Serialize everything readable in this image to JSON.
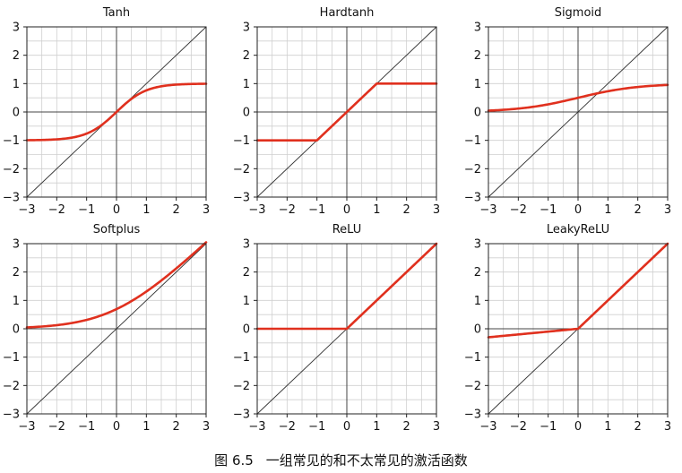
{
  "figure": {
    "caption_number": "图 6.5",
    "caption_text": "一组常见的和不太常见的激活函数"
  },
  "chart_data": [
    {
      "type": "line",
      "title": "Tanh",
      "function": "tanh",
      "xlim": [
        -3,
        3
      ],
      "ylim": [
        -3,
        3
      ],
      "xticks": [
        "−3",
        "−2",
        "−1",
        "0",
        "1",
        "2",
        "3"
      ],
      "yticks": [
        "−3",
        "−2",
        "−1",
        "0",
        "1",
        "2",
        "3"
      ],
      "grid": true,
      "series_color": "#e0301e",
      "reference_color": "#333333"
    },
    {
      "type": "line",
      "title": "Hardtanh",
      "function": "hardtanh",
      "xlim": [
        -3,
        3
      ],
      "ylim": [
        -3,
        3
      ],
      "xticks": [
        "−3",
        "−2",
        "−1",
        "0",
        "1",
        "2",
        "3"
      ],
      "yticks": [
        "−3",
        "−2",
        "−1",
        "0",
        "1",
        "2",
        "3"
      ],
      "grid": true,
      "series_color": "#e0301e",
      "reference_color": "#333333"
    },
    {
      "type": "line",
      "title": "Sigmoid",
      "function": "sigmoid",
      "xlim": [
        -3,
        3
      ],
      "ylim": [
        -3,
        3
      ],
      "xticks": [
        "−3",
        "−2",
        "−1",
        "0",
        "1",
        "2",
        "3"
      ],
      "yticks": [
        "−3",
        "−2",
        "−1",
        "0",
        "1",
        "2",
        "3"
      ],
      "grid": true,
      "series_color": "#e0301e",
      "reference_color": "#333333"
    },
    {
      "type": "line",
      "title": "Softplus",
      "function": "softplus",
      "xlim": [
        -3,
        3
      ],
      "ylim": [
        -3,
        3
      ],
      "xticks": [
        "−3",
        "−2",
        "−1",
        "0",
        "1",
        "2",
        "3"
      ],
      "yticks": [
        "−3",
        "−2",
        "−1",
        "0",
        "1",
        "2",
        "3"
      ],
      "grid": true,
      "series_color": "#e0301e",
      "reference_color": "#333333"
    },
    {
      "type": "line",
      "title": "ReLU",
      "function": "relu",
      "xlim": [
        -3,
        3
      ],
      "ylim": [
        -3,
        3
      ],
      "xticks": [
        "−3",
        "−2",
        "−1",
        "0",
        "1",
        "2",
        "3"
      ],
      "yticks": [
        "−3",
        "−2",
        "−1",
        "0",
        "1",
        "2",
        "3"
      ],
      "grid": true,
      "series_color": "#e0301e",
      "reference_color": "#333333"
    },
    {
      "type": "line",
      "title": "LeakyReLU",
      "function": "leakyrelu",
      "negative_slope": 0.1,
      "xlim": [
        -3,
        3
      ],
      "ylim": [
        -3,
        3
      ],
      "xticks": [
        "−3",
        "−2",
        "−1",
        "0",
        "1",
        "2",
        "3"
      ],
      "yticks": [
        "−3",
        "−2",
        "−1",
        "0",
        "1",
        "2",
        "3"
      ],
      "grid": true,
      "series_color": "#e0301e",
      "reference_color": "#333333"
    }
  ]
}
